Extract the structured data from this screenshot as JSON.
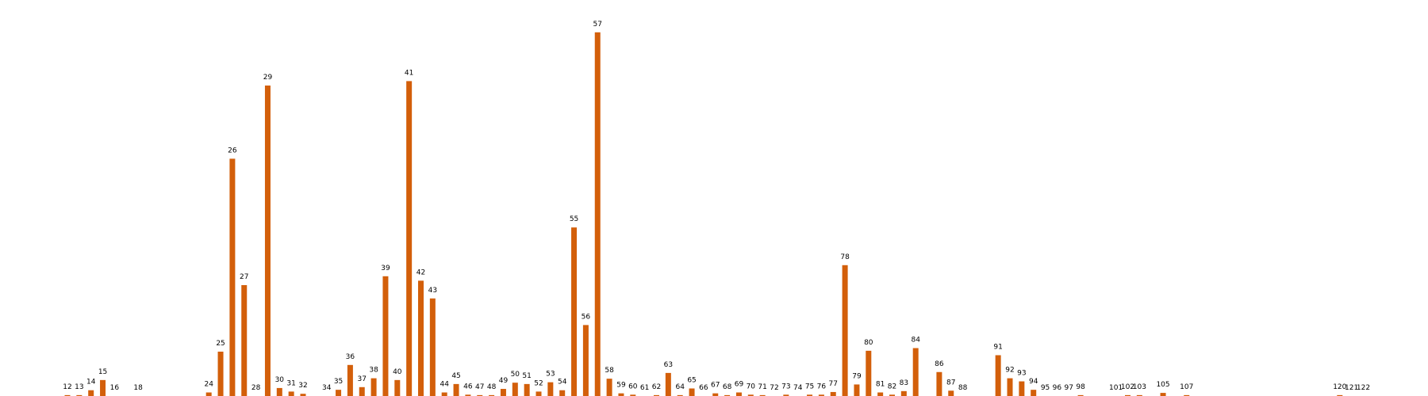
{
  "chart_data": {
    "type": "bar",
    "title": "",
    "xlabel": "",
    "ylabel": "",
    "ylim": [
      0,
      85
    ],
    "grid": false,
    "legend": "none",
    "bar_color": "#d35f0a",
    "categories": [
      12,
      13,
      14,
      15,
      16,
      18,
      24,
      25,
      26,
      27,
      28,
      29,
      30,
      31,
      32,
      34,
      35,
      36,
      37,
      38,
      39,
      40,
      41,
      42,
      43,
      44,
      45,
      46,
      47,
      48,
      49,
      50,
      51,
      52,
      53,
      54,
      55,
      56,
      57,
      58,
      59,
      60,
      61,
      62,
      63,
      64,
      65,
      66,
      67,
      68,
      69,
      70,
      71,
      72,
      73,
      74,
      75,
      76,
      77,
      78,
      79,
      80,
      81,
      82,
      83,
      84,
      86,
      87,
      88,
      91,
      92,
      93,
      94,
      95,
      96,
      97,
      98,
      101,
      102,
      103,
      105,
      107,
      120,
      121,
      122
    ],
    "series": [
      {
        "values": [
          0.2,
          0.2,
          1.3,
          3.6,
          0,
          0,
          0.8,
          10,
          53.5,
          25,
          0,
          70,
          1.8,
          1,
          0.5,
          0,
          1.4,
          7,
          2,
          4,
          27,
          3.6,
          71,
          26,
          22,
          0.8,
          2.7,
          0.3,
          0.2,
          0.2,
          1.6,
          3,
          2.7,
          1,
          3.1,
          1.3,
          38,
          16,
          82,
          3.9,
          0.6,
          0.3,
          0,
          0.2,
          5.2,
          0.2,
          1.7,
          0,
          0.6,
          0.2,
          0.8,
          0.3,
          0.2,
          0,
          0.3,
          0,
          0.3,
          0.3,
          0.9,
          29.5,
          2.6,
          10.2,
          0.8,
          0.3,
          1.1,
          10.8,
          5.4,
          1.2,
          0,
          9.2,
          4,
          3.3,
          1.4,
          0,
          0,
          0,
          0.2,
          0,
          0.2,
          0.2,
          0.7,
          0.2,
          0.2,
          0,
          0
        ]
      }
    ]
  }
}
